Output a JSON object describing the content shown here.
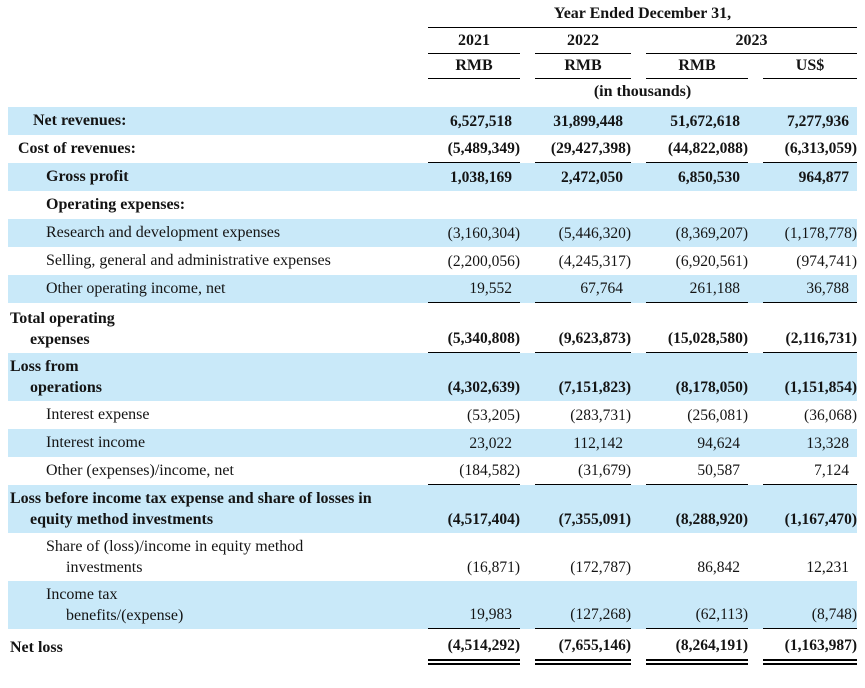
{
  "colors": {
    "row_highlight": "#c9e9f9",
    "text": "#141414",
    "rule": "#000000"
  },
  "header": {
    "title": "Year Ended December 31,",
    "years": [
      "2021",
      "2022",
      "2023"
    ],
    "currencies": [
      "RMB",
      "RMB",
      "RMB",
      "US$"
    ],
    "units_note": "(in thousands)"
  },
  "rows": [
    {
      "name": "net-revenues",
      "label": "Net revenues:",
      "label2": "",
      "indent": 2,
      "indent2": "",
      "bold": true,
      "highlight": true,
      "underline": "none",
      "values": [
        "6,527,518",
        "31,899,448",
        "51,672,618",
        "7,277,936"
      ]
    },
    {
      "name": "cost-of-revenues",
      "label": "Cost of revenues:",
      "label2": "",
      "indent": 1,
      "indent2": "",
      "bold": true,
      "highlight": false,
      "underline": "single",
      "values": [
        "(5,489,349)",
        "(29,427,398)",
        "(44,822,088)",
        "(6,313,059)"
      ]
    },
    {
      "name": "gross-profit",
      "label": "Gross profit",
      "label2": "",
      "indent": 3,
      "indent2": "",
      "bold": true,
      "highlight": true,
      "underline": "none",
      "values": [
        "1,038,169",
        "2,472,050",
        "6,850,530",
        "964,877"
      ]
    },
    {
      "name": "operating-expenses-heading",
      "label": "Operating expenses:",
      "label2": "",
      "indent": 3,
      "indent2": "",
      "bold": true,
      "highlight": false,
      "underline": "none",
      "values": [
        "",
        "",
        "",
        ""
      ]
    },
    {
      "name": "research-development-expenses",
      "label": "Research and development expenses",
      "label2": "",
      "indent": 3,
      "indent2": "",
      "bold": false,
      "highlight": true,
      "underline": "none",
      "values": [
        "(3,160,304)",
        "(5,446,320)",
        "(8,369,207)",
        "(1,178,778)"
      ]
    },
    {
      "name": "selling-general-admin-expenses",
      "label": "Selling, general and administrative expenses",
      "label2": "",
      "indent": 3,
      "indent2": "",
      "bold": false,
      "highlight": false,
      "underline": "none",
      "values": [
        "(2,200,056)",
        "(4,245,317)",
        "(6,920,561)",
        "(974,741)"
      ]
    },
    {
      "name": "other-operating-income-net",
      "label": "Other operating income, net",
      "label2": "",
      "indent": 3,
      "indent2": "",
      "bold": false,
      "highlight": true,
      "underline": "single",
      "values": [
        "19,552",
        "67,764",
        "261,188",
        "36,788"
      ]
    },
    {
      "name": "total-operating-expenses",
      "label": "Total operating",
      "label2": "expenses",
      "indent": 0,
      "indent2": "hang1",
      "bold": true,
      "highlight": false,
      "underline": "single",
      "values": [
        "(5,340,808)",
        "(9,623,873)",
        "(15,028,580)",
        "(2,116,731)"
      ]
    },
    {
      "name": "loss-from-operations",
      "label": "Loss from",
      "label2": "operations",
      "indent": 0,
      "indent2": "hang1",
      "bold": true,
      "highlight": true,
      "underline": "none",
      "values": [
        "(4,302,639)",
        "(7,151,823)",
        "(8,178,050)",
        "(1,151,854)"
      ]
    },
    {
      "name": "interest-expense",
      "label": "Interest expense",
      "label2": "",
      "indent": 3,
      "indent2": "",
      "bold": false,
      "highlight": false,
      "underline": "none",
      "values": [
        "(53,205)",
        "(283,731)",
        "(256,081)",
        "(36,068)"
      ]
    },
    {
      "name": "interest-income",
      "label": "Interest income",
      "label2": "",
      "indent": 3,
      "indent2": "",
      "bold": false,
      "highlight": true,
      "underline": "none",
      "values": [
        "23,022",
        "112,142",
        "94,624",
        "13,328"
      ]
    },
    {
      "name": "other-expenses-income-net",
      "label": "Other (expenses)/income, net",
      "label2": "",
      "indent": 3,
      "indent2": "",
      "bold": false,
      "highlight": false,
      "underline": "single",
      "values": [
        "(184,582)",
        "(31,679)",
        "50,587",
        "7,124"
      ]
    },
    {
      "name": "loss-before-income-tax",
      "label": "Loss before income tax expense and share of losses in",
      "label2": "equity method investments",
      "indent": 0,
      "indent2": "hang1",
      "bold": true,
      "highlight": true,
      "underline": "none",
      "values": [
        "(4,517,404)",
        "(7,355,091)",
        "(8,288,920)",
        "(1,167,470)"
      ]
    },
    {
      "name": "share-of-loss-income-equity-method",
      "label": "Share of (loss)/income in equity method",
      "label2": "investments",
      "indent": 3,
      "indent2": "hang2",
      "bold": false,
      "highlight": false,
      "underline": "none",
      "values": [
        "(16,871)",
        "(172,787)",
        "86,842",
        "12,231"
      ]
    },
    {
      "name": "income-tax-benefits-expense",
      "label": "Income tax",
      "label2": "benefits/(expense)",
      "indent": 3,
      "indent2": "hang2",
      "bold": false,
      "highlight": true,
      "underline": "single",
      "values": [
        "19,983",
        "(127,268)",
        "(62,113)",
        "(8,748)"
      ]
    },
    {
      "name": "net-loss",
      "label": "Net loss",
      "label2": "",
      "indent": 0,
      "indent2": "",
      "bold": true,
      "highlight": false,
      "underline": "double",
      "values": [
        "(4,514,292)",
        "(7,655,146)",
        "(8,264,191)",
        "(1,163,987)"
      ]
    }
  ]
}
